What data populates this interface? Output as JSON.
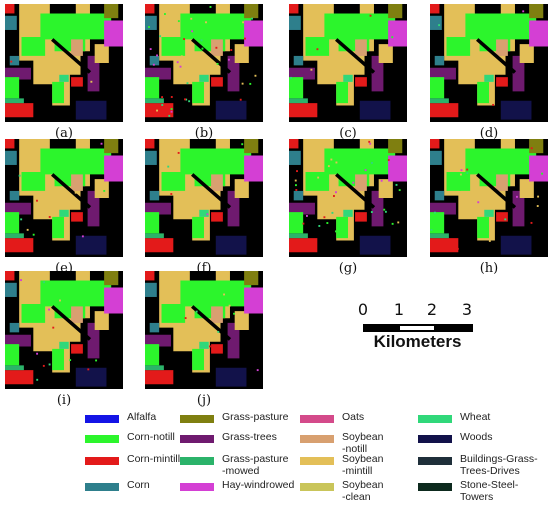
{
  "panels": [
    {
      "label": "(a)"
    },
    {
      "label": "(b)"
    },
    {
      "label": "(c)"
    },
    {
      "label": "(d)"
    },
    {
      "label": "(e)"
    },
    {
      "label": "(f)"
    },
    {
      "label": "(g)"
    },
    {
      "label": "(h)"
    },
    {
      "label": "(i)"
    },
    {
      "label": "(j)"
    }
  ],
  "scale": {
    "ticks": [
      "0",
      "1",
      "2",
      "3"
    ],
    "unit": "Kilometers"
  },
  "legend": [
    {
      "label": "Alfalfa",
      "color": "#1414e6"
    },
    {
      "label": "Corn-notill",
      "color": "#2cf52c"
    },
    {
      "label": "Corn-mintill",
      "color": "#e31a1a"
    },
    {
      "label": "Corn",
      "color": "#2e7f8c"
    },
    {
      "label": "Grass-pasture",
      "color": "#7f7f10"
    },
    {
      "label": "Grass-trees",
      "color": "#6f1a6f"
    },
    {
      "label": "Grass-pasture\n-mowed",
      "color": "#2bb36a"
    },
    {
      "label": "Hay-windrowed",
      "color": "#d43fd4"
    },
    {
      "label": "Oats",
      "color": "#d44a8a"
    },
    {
      "label": "Soybean\n-notill",
      "color": "#d8a070"
    },
    {
      "label": "Soybean\n-mintill",
      "color": "#e3bf58"
    },
    {
      "label": "Soybean\n-clean",
      "color": "#c9c55a"
    },
    {
      "label": "Wheat",
      "color": "#30d87a"
    },
    {
      "label": "Woods",
      "color": "#12124a"
    },
    {
      "label": "Buildings-Grass-\nTrees-Drives",
      "color": "#1f2f3a"
    },
    {
      "label": "Stone-Steel-\nTowers",
      "color": "#0d2a1e"
    }
  ]
}
